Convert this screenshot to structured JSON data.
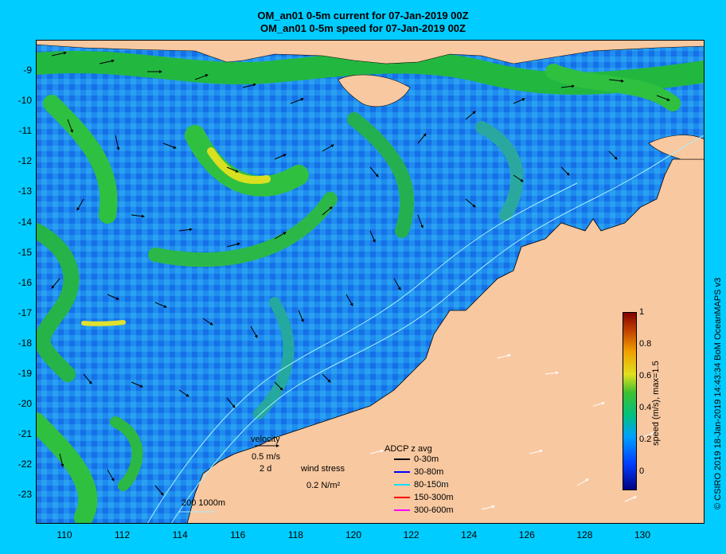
{
  "title_line1": "OM_an01 0-5m current for 07-Jan-2019 00Z",
  "title_line2": "OM_an01 0-5m speed for 07-Jan-2019 00Z",
  "lat_labels": [
    "-9",
    "-10",
    "-11",
    "-12",
    "-13",
    "-14",
    "-15",
    "-16",
    "-17",
    "-18",
    "-19",
    "-20",
    "-21",
    "-22",
    "-23"
  ],
  "lon_labels": [
    "110",
    "112",
    "114",
    "116",
    "118",
    "120",
    "122",
    "124",
    "126",
    "128",
    "130"
  ],
  "colorbar": {
    "label": "speed (m/s), max=1.5",
    "ticks": [
      "1",
      "0.8",
      "0.6",
      "0.4",
      "0.2",
      "0"
    ]
  },
  "legend": {
    "velocity_label": "velocity",
    "velocity_scale": "0.5 m/s",
    "velocity_time": "2 d",
    "wind_label": "wind stress",
    "wind_scale": "0.2 N/m²",
    "adcp_title": "ADCP z avg",
    "adcp_items": [
      {
        "label": "0-30m",
        "color": "#000000"
      },
      {
        "label": "30-80m",
        "color": "#0000ff"
      },
      {
        "label": "80-150m",
        "color": "#00e0ff"
      },
      {
        "label": "150-300m",
        "color": "#ff0000"
      },
      {
        "label": "300-600m",
        "color": "#ff00ff"
      }
    ],
    "isobaths": "200  1000m"
  },
  "credit": "© CSIRO 2019   18-Jan-2019 14:43:34 BoM OceanMAPS v3"
}
